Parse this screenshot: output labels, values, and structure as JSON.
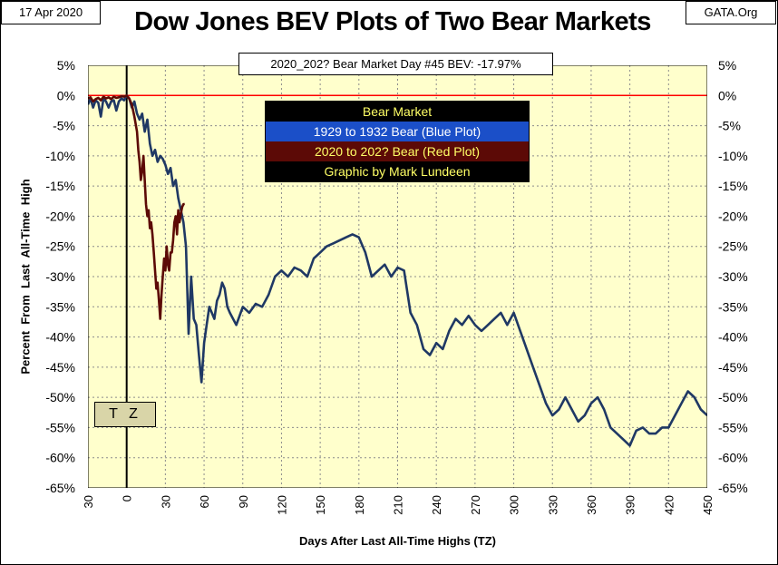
{
  "header": {
    "date": "17 Apr 2020",
    "title": "Dow Jones BEV Plots of Two Bear Markets",
    "site": "GATA.Org"
  },
  "annotation": "2020_202? Bear Market Day #45 BEV: -17.97%",
  "legend": {
    "heading": "Bear Market",
    "blue": "1929 to 1932 Bear (Blue Plot)",
    "red": "2020 to 202? Bear (Red Plot)",
    "credit": "Graphic by Mark Lundeen"
  },
  "tz_marker": "T Z",
  "colors": {
    "plot_background": "#ffffcc",
    "blue_series": "#1f3864",
    "red_series": "#5c0a06",
    "zero_line": "#ff0000",
    "tz_line": "#000000"
  },
  "chart_data": {
    "type": "line",
    "xlabel": "Days After Last All-Time Highs (TZ)",
    "ylabel": "Percent  From  Last  All-Time  High",
    "xlim": [
      -30,
      450
    ],
    "ylim": [
      -65,
      5
    ],
    "x_ticks": [
      -30,
      0,
      30,
      60,
      90,
      120,
      150,
      180,
      210,
      240,
      270,
      300,
      330,
      360,
      390,
      420,
      450
    ],
    "x_tick_labels": [
      "30",
      "0",
      "30",
      "60",
      "90",
      "120",
      "150",
      "180",
      "210",
      "240",
      "270",
      "300",
      "330",
      "360",
      "390",
      "420",
      "450"
    ],
    "y_ticks": [
      5,
      0,
      -5,
      -10,
      -15,
      -20,
      -25,
      -30,
      -35,
      -40,
      -45,
      -50,
      -55,
      -60,
      -65
    ],
    "y_tick_labels": [
      "5%",
      "0%",
      "-5%",
      "-10%",
      "-15%",
      "-20%",
      "-25%",
      "-30%",
      "-35%",
      "-40%",
      "-45%",
      "-50%",
      "-55%",
      "-60%",
      "-65%"
    ],
    "reference_lines": {
      "y": 0,
      "x": 0
    },
    "grid": true,
    "series": [
      {
        "name": "1929 to 1932 Bear (Blue Plot)",
        "x": [
          -30,
          -28,
          -26,
          -24,
          -22,
          -20,
          -18,
          -16,
          -14,
          -12,
          -10,
          -8,
          -6,
          -4,
          -2,
          0,
          2,
          4,
          6,
          8,
          10,
          12,
          14,
          16,
          18,
          20,
          22,
          24,
          26,
          28,
          30,
          32,
          34,
          36,
          38,
          40,
          42,
          44,
          46,
          48,
          50,
          52,
          54,
          56,
          58,
          60,
          62,
          64,
          66,
          68,
          70,
          72,
          74,
          76,
          78,
          80,
          85,
          90,
          95,
          100,
          105,
          110,
          115,
          120,
          125,
          130,
          135,
          140,
          145,
          150,
          155,
          160,
          165,
          170,
          175,
          180,
          185,
          190,
          195,
          200,
          205,
          210,
          215,
          220,
          225,
          230,
          235,
          240,
          245,
          250,
          255,
          260,
          265,
          270,
          275,
          280,
          285,
          290,
          295,
          300,
          305,
          310,
          315,
          320,
          325,
          330,
          335,
          340,
          345,
          350,
          355,
          360,
          365,
          370,
          375,
          380,
          385,
          390,
          395,
          400,
          405,
          410,
          415,
          420,
          425,
          430,
          435,
          440,
          445,
          450
        ],
        "y": [
          -1.5,
          -0.5,
          -2,
          -0.8,
          -1.2,
          -3.5,
          -0.5,
          -1,
          -2,
          -1,
          -0.8,
          -2.5,
          -1,
          -0.5,
          -0.8,
          0,
          -0.5,
          -2,
          -1,
          -3,
          -4,
          -3,
          -6,
          -4,
          -8,
          -10,
          -9,
          -11,
          -10,
          -10.5,
          -11.5,
          -13,
          -12,
          -15,
          -14,
          -17,
          -19,
          -21,
          -25,
          -39.5,
          -30,
          -37,
          -38,
          -43,
          -47.5,
          -41,
          -38,
          -35,
          -36,
          -37,
          -34,
          -33,
          -31,
          -32,
          -35,
          -36,
          -38,
          -35,
          -36,
          -34.5,
          -35,
          -33,
          -30,
          -29,
          -30,
          -28.5,
          -29,
          -30,
          -27,
          -26,
          -25,
          -24.5,
          -24,
          -23.5,
          -23,
          -23.5,
          -26,
          -30,
          -29,
          -28,
          -30,
          -28.5,
          -29,
          -36,
          -38,
          -42,
          -43,
          -41,
          -42,
          -39,
          -37,
          -38,
          -36.5,
          -38,
          -39,
          -38,
          -37,
          -36,
          -38,
          -36,
          -39,
          -42,
          -45,
          -48,
          -51,
          -53,
          -52,
          -50,
          -52,
          -54,
          -53,
          -51,
          -50,
          -52,
          -55,
          -56,
          -57,
          -58,
          -55.5,
          -55,
          -56,
          -56,
          -55,
          -55,
          -53,
          -51,
          -49,
          -50,
          -52,
          -53
        ]
      },
      {
        "name": "2020 to 202? Bear (Red Plot)",
        "x": [
          -30,
          -28,
          -26,
          -24,
          -22,
          -20,
          -18,
          -16,
          -14,
          -12,
          -10,
          -8,
          -6,
          -4,
          -2,
          0,
          2,
          4,
          6,
          8,
          9,
          10,
          11,
          12,
          13,
          14,
          15,
          16,
          17,
          18,
          19,
          20,
          21,
          22,
          23,
          24,
          25,
          26,
          27,
          28,
          29,
          30,
          31,
          32,
          33,
          34,
          35,
          36,
          37,
          38,
          39,
          40,
          41,
          42,
          43,
          44,
          45
        ],
        "y": [
          -0.5,
          -0.3,
          -1,
          -0.6,
          -0.4,
          -0.8,
          -0.2,
          -0.5,
          -0.3,
          -0.6,
          -0.2,
          -0.4,
          -0.3,
          -0.1,
          -0.2,
          0,
          -0.5,
          -1.5,
          -3.5,
          -6,
          -9,
          -11,
          -14,
          -12.5,
          -10,
          -14,
          -18,
          -20,
          -19,
          -22,
          -21,
          -23,
          -26,
          -29,
          -32,
          -31,
          -34,
          -37,
          -33,
          -30,
          -27,
          -29,
          -25,
          -28,
          -29,
          -26,
          -26,
          -24,
          -21,
          -20,
          -23,
          -19,
          -21,
          -19.5,
          -18.5,
          -18,
          -17.97
        ]
      }
    ]
  }
}
